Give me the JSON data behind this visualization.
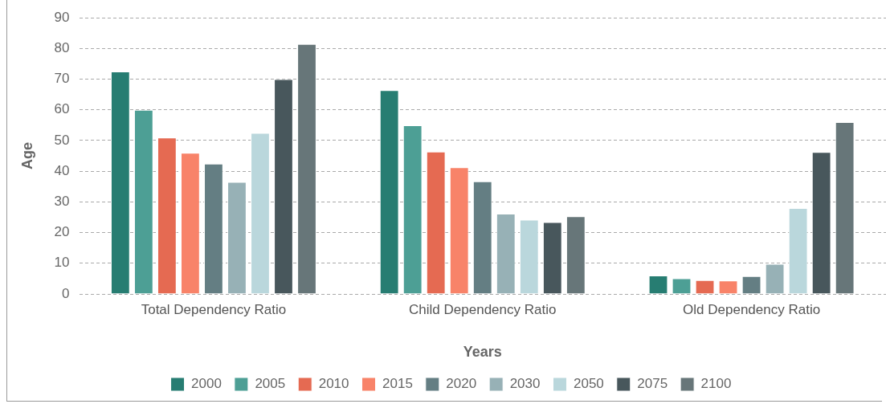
{
  "chart_data": {
    "type": "bar",
    "xlabel": "Years",
    "ylabel": "Age",
    "categories": [
      "Total Dependency Ratio",
      "Child Dependency Ratio",
      "Old Dependency Ratio"
    ],
    "series": [
      {
        "name": "2000",
        "color": "#277d72",
        "values": [
          72.5,
          66.4,
          6.0
        ]
      },
      {
        "name": "2005",
        "color": "#4d9f95",
        "values": [
          60,
          55,
          5.1
        ]
      },
      {
        "name": "2010",
        "color": "#e56a52",
        "values": [
          51,
          46.4,
          4.5
        ]
      },
      {
        "name": "2015",
        "color": "#f88369",
        "values": [
          46,
          41.3,
          4.4
        ]
      },
      {
        "name": "2020",
        "color": "#647e83",
        "values": [
          42.5,
          36.7,
          5.8
        ]
      },
      {
        "name": "2030",
        "color": "#97b1b6",
        "values": [
          36.5,
          26.2,
          9.8
        ]
      },
      {
        "name": "2050",
        "color": "#bad7dc",
        "values": [
          52.5,
          24.2,
          28
        ]
      },
      {
        "name": "2075",
        "color": "#48575c",
        "values": [
          70,
          23.4,
          46.3
        ]
      },
      {
        "name": "2100",
        "color": "#677679",
        "values": [
          81.5,
          25.3,
          56
        ]
      }
    ],
    "ylim": [
      0,
      90
    ],
    "yticks": [
      0,
      10,
      20,
      30,
      40,
      50,
      60,
      70,
      80,
      90
    ],
    "grid": "y",
    "legend": "bottom"
  }
}
